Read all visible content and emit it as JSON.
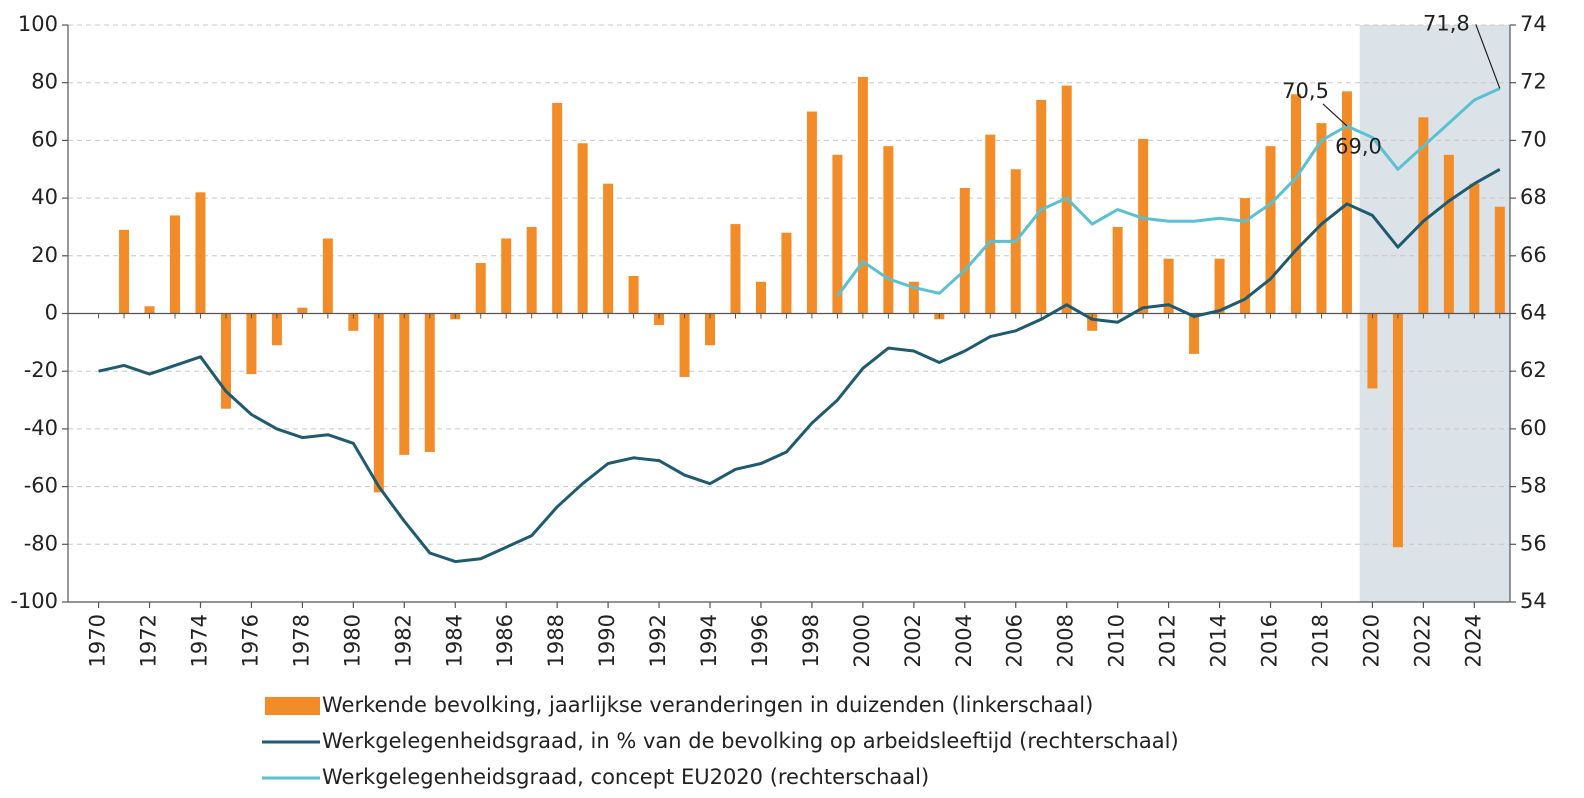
{
  "chart_data": {
    "type": "bar-line",
    "x": [
      1970,
      1971,
      1972,
      1973,
      1974,
      1975,
      1976,
      1977,
      1978,
      1979,
      1980,
      1981,
      1982,
      1983,
      1984,
      1985,
      1986,
      1987,
      1988,
      1989,
      1990,
      1991,
      1992,
      1993,
      1994,
      1995,
      1996,
      1997,
      1998,
      1999,
      2000,
      2001,
      2002,
      2003,
      2004,
      2005,
      2006,
      2007,
      2008,
      2009,
      2010,
      2011,
      2012,
      2013,
      2014,
      2015,
      2016,
      2017,
      2018,
      2019,
      2020,
      2021,
      2022,
      2023,
      2024,
      2025
    ],
    "xlim": [
      1968.8,
      2025.4
    ],
    "xticks": [
      1970,
      1972,
      1974,
      1976,
      1978,
      1980,
      1982,
      1984,
      1986,
      1988,
      1990,
      1992,
      1994,
      1996,
      1998,
      2000,
      2002,
      2004,
      2006,
      2008,
      2010,
      2012,
      2014,
      2016,
      2018,
      2020,
      2022,
      2024
    ],
    "ylim": [
      -100,
      100
    ],
    "yticks": [
      -100,
      -80,
      -60,
      -40,
      -20,
      0,
      20,
      40,
      60,
      80,
      100
    ],
    "y2lim": [
      54,
      74
    ],
    "y2ticks": [
      54,
      56,
      58,
      60,
      62,
      64,
      66,
      68,
      70,
      72,
      74
    ],
    "grid": true,
    "forecast_span": [
      2019.5,
      2025.5
    ],
    "series": [
      {
        "name": "Werkende bevolking, jaarlijkse veranderingen in duizenden (linkerschaal)",
        "kind": "bar",
        "color": "#f28c28",
        "values": [
          null,
          29,
          2.5,
          34,
          42,
          -33,
          -21,
          -11,
          2,
          26,
          -6,
          -62,
          -49,
          -48,
          -2,
          17.5,
          26,
          30,
          73,
          59,
          45,
          13,
          -4,
          -22,
          -11,
          31,
          11,
          28,
          70,
          55,
          82,
          58,
          11,
          -2,
          43.5,
          62,
          50,
          74,
          79,
          -6,
          30,
          60.5,
          19,
          -14,
          19,
          40,
          58,
          76,
          66,
          77,
          -26,
          -81,
          68,
          55,
          45,
          37
        ]
      },
      {
        "name": "Werkgelegenheidsgraad, in % van de bevolking op arbeidsleeftijd (rechterschaal)",
        "kind": "line",
        "axis": "y2",
        "color": "#1f5a6e",
        "values": [
          62.0,
          62.2,
          61.9,
          62.2,
          62.5,
          61.3,
          60.5,
          60.0,
          59.7,
          59.8,
          59.5,
          58.0,
          56.8,
          55.7,
          55.4,
          55.5,
          55.9,
          56.3,
          57.3,
          58.1,
          58.8,
          59.0,
          58.9,
          58.4,
          58.1,
          58.6,
          58.8,
          59.2,
          60.2,
          61.0,
          62.1,
          62.8,
          62.7,
          62.3,
          62.7,
          63.2,
          63.4,
          63.8,
          64.3,
          63.8,
          63.7,
          64.2,
          64.3,
          63.9,
          64.1,
          64.5,
          65.2,
          66.2,
          67.1,
          67.8,
          67.4,
          66.3,
          67.2,
          67.9,
          68.5,
          69.0
        ]
      },
      {
        "name": "Werkgelegenheidsgraad, concept EU2020 (rechterschaal)",
        "kind": "line",
        "axis": "y2",
        "color": "#5bc0d0",
        "values": [
          null,
          null,
          null,
          null,
          null,
          null,
          null,
          null,
          null,
          null,
          null,
          null,
          null,
          null,
          null,
          null,
          null,
          null,
          null,
          null,
          null,
          null,
          null,
          null,
          null,
          null,
          null,
          null,
          null,
          64.6,
          65.8,
          65.2,
          64.9,
          64.7,
          65.5,
          66.5,
          66.5,
          67.6,
          68.0,
          67.1,
          67.6,
          67.3,
          67.2,
          67.2,
          67.3,
          67.2,
          67.8,
          68.7,
          70.0,
          70.5,
          70.1,
          69.0,
          69.8,
          70.6,
          71.4,
          71.8
        ]
      }
    ],
    "annotations": [
      {
        "text": "70,5",
        "x": 2019,
        "y": 70.5
      },
      {
        "text": "71,8",
        "x": 2025,
        "y": 71.8
      },
      {
        "text": "69,0",
        "x": 2021,
        "y": 69.0
      }
    ]
  }
}
